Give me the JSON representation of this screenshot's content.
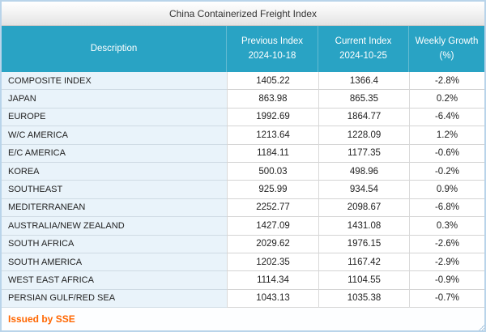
{
  "page": {
    "title": "China Containerized Freight Index"
  },
  "table": {
    "columns": [
      {
        "label": "Description",
        "sublabel": ""
      },
      {
        "label": "Previous Index",
        "sublabel": "2024-10-18"
      },
      {
        "label": "Current Index",
        "sublabel": "2024-10-25"
      },
      {
        "label": "Weekly Growth",
        "sublabel": "(%)"
      }
    ],
    "rows": [
      {
        "description": "COMPOSITE INDEX",
        "previous": "1405.22",
        "current": "1366.4",
        "growth": "-2.8%"
      },
      {
        "description": "JAPAN",
        "previous": "863.98",
        "current": "865.35",
        "growth": "0.2%"
      },
      {
        "description": "EUROPE",
        "previous": "1992.69",
        "current": "1864.77",
        "growth": "-6.4%"
      },
      {
        "description": "W/C AMERICA",
        "previous": "1213.64",
        "current": "1228.09",
        "growth": "1.2%"
      },
      {
        "description": "E/C AMERICA",
        "previous": "1184.11",
        "current": "1177.35",
        "growth": "-0.6%"
      },
      {
        "description": "KOREA",
        "previous": "500.03",
        "current": "498.96",
        "growth": "-0.2%"
      },
      {
        "description": "SOUTHEAST",
        "previous": "925.99",
        "current": "934.54",
        "growth": "0.9%"
      },
      {
        "description": "MEDITERRANEAN",
        "previous": "2252.77",
        "current": "2098.67",
        "growth": "-6.8%"
      },
      {
        "description": "AUSTRALIA/NEW ZEALAND",
        "previous": "1427.09",
        "current": "1431.08",
        "growth": "0.3%"
      },
      {
        "description": "SOUTH AFRICA",
        "previous": "2029.62",
        "current": "1976.15",
        "growth": "-2.6%"
      },
      {
        "description": "SOUTH AMERICA",
        "previous": "1202.35",
        "current": "1167.42",
        "growth": "-2.9%"
      },
      {
        "description": "WEST EAST AFRICA",
        "previous": "1114.34",
        "current": "1104.55",
        "growth": "-0.9%"
      },
      {
        "description": "PERSIAN GULF/RED SEA",
        "previous": "1043.13",
        "current": "1035.38",
        "growth": "-0.7%"
      }
    ]
  },
  "footer": {
    "issued_by": "Issued by SSE"
  },
  "colors": {
    "header_bg": "#29a3c4",
    "description_cell_bg": "#e9f3fa",
    "issued_by_text": "#ff6600",
    "outer_border": "#b9d4ea"
  }
}
